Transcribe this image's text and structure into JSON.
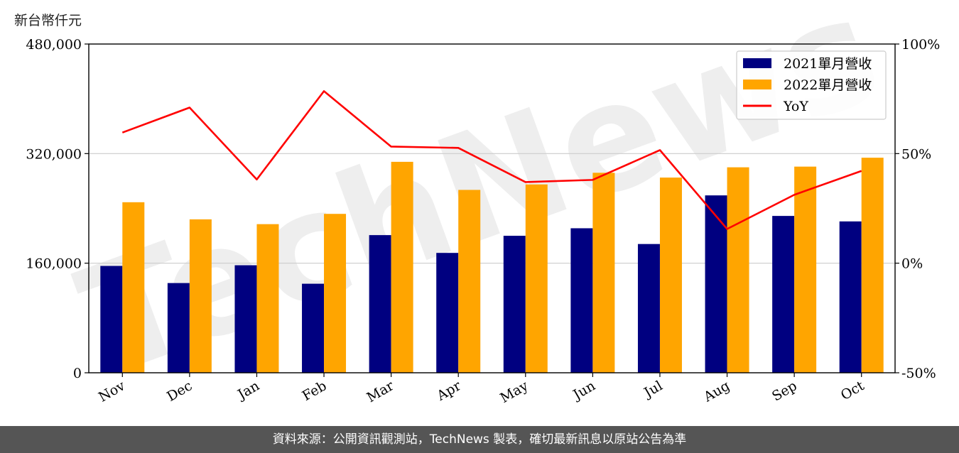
{
  "unit_label": "新台幣仟元",
  "footer_text": "資料來源：公開資訊觀測站，TechNews 製表，確切最新訊息以原站公告為準",
  "watermark_text": "TechNews",
  "colors": {
    "series_2021": "#000080",
    "series_2022": "#FFA500",
    "yoy": "#FF0000",
    "grid": "#cccccc"
  },
  "chart_data": {
    "type": "bar",
    "categories": [
      "Nov",
      "Dec",
      "Jan",
      "Feb",
      "Mar",
      "Apr",
      "May",
      "Jun",
      "Jul",
      "Aug",
      "Sep",
      "Oct"
    ],
    "series": [
      {
        "name": "2021單月營收",
        "values": [
          156000,
          131000,
          157000,
          130000,
          201000,
          175000,
          200000,
          211000,
          188000,
          259000,
          229000,
          221000
        ]
      },
      {
        "name": "2022單月營收",
        "values": [
          249000,
          224000,
          217000,
          232000,
          308000,
          267000,
          275000,
          292000,
          285000,
          300000,
          301000,
          314000
        ]
      }
    ],
    "line": {
      "name": "YoY",
      "values": [
        59.6,
        71.0,
        38.2,
        78.5,
        53.2,
        52.6,
        37.0,
        38.0,
        51.6,
        15.6,
        31.2,
        42.1
      ]
    },
    "ylim": [
      0,
      480000
    ],
    "yticks": [
      0,
      160000,
      320000,
      480000
    ],
    "ytick_labels": [
      "0",
      "160,000",
      "320,000",
      "480,000"
    ],
    "y2lim": [
      -50,
      100
    ],
    "y2ticks": [
      -50,
      0,
      50,
      100
    ],
    "y2tick_labels": [
      "-50%",
      "0%",
      "50%",
      "100%"
    ],
    "grid": "horizontal",
    "legend_position": "top-right"
  }
}
